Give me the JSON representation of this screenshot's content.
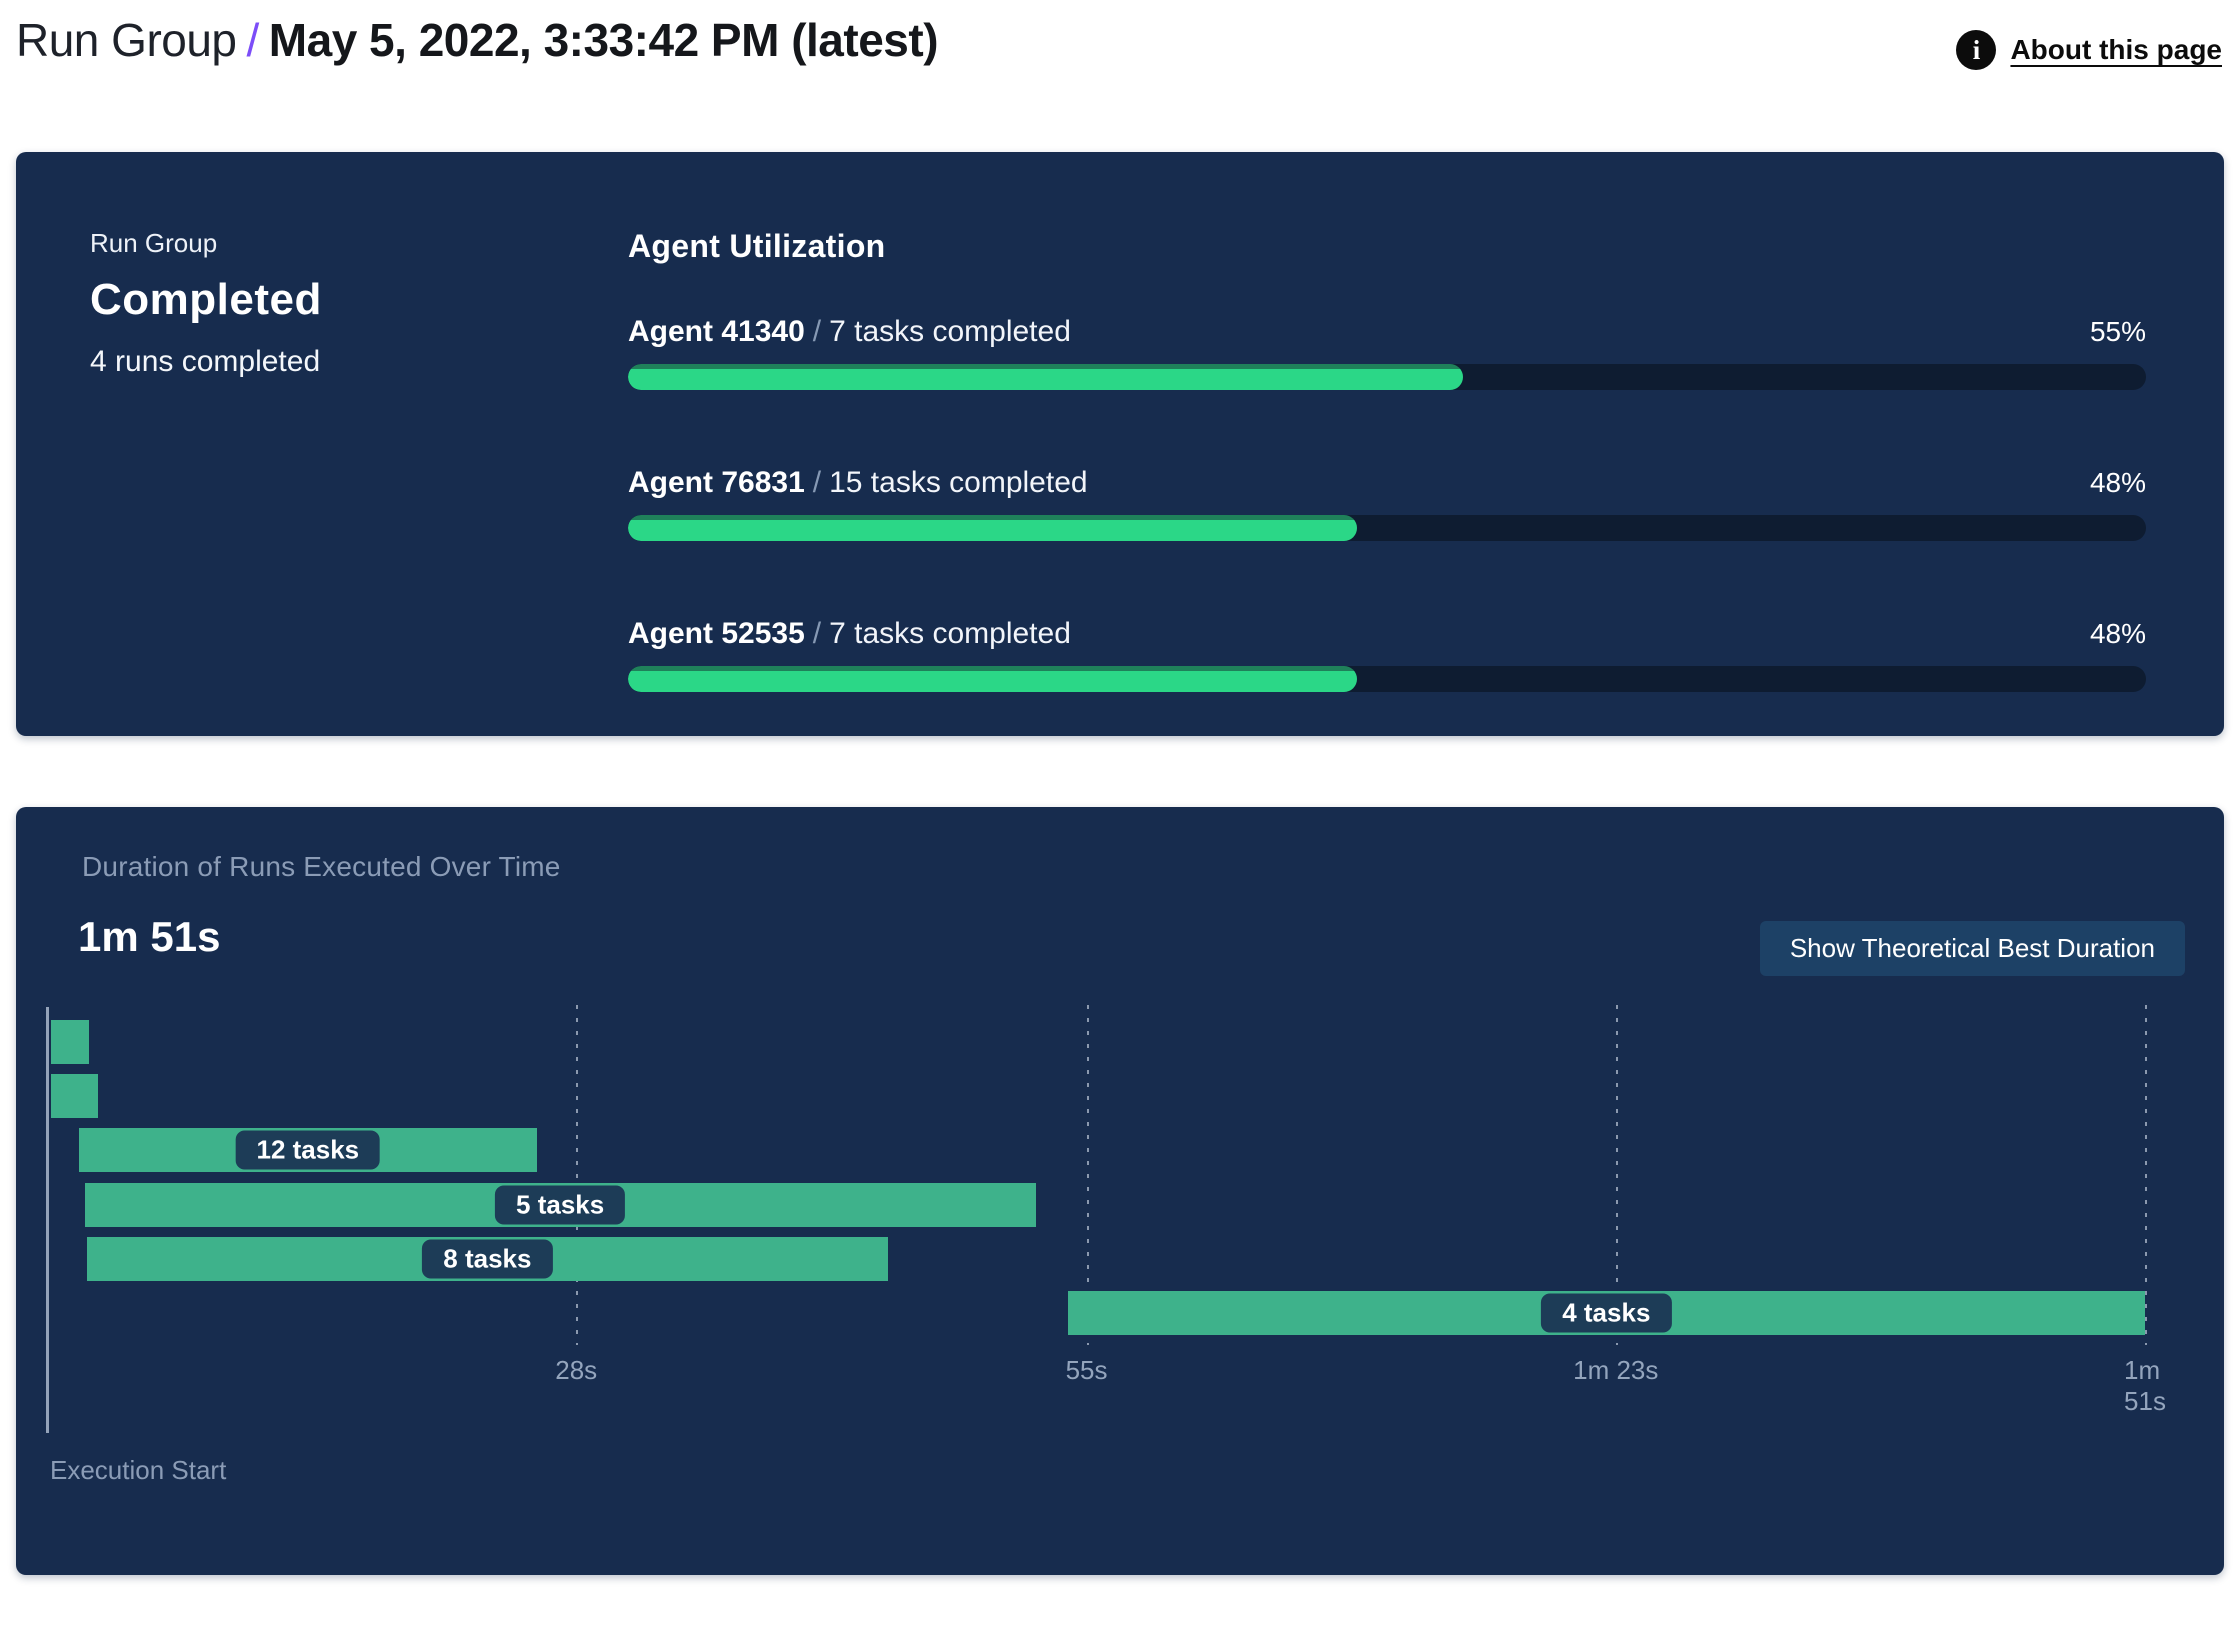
{
  "header": {
    "breadcrumb": "Run Group",
    "separator": "/",
    "title": "May 5, 2022, 3:33:42 PM (latest)",
    "about_link": "About this page",
    "info_icon_glyph": "i"
  },
  "summary": {
    "label": "Run Group",
    "status": "Completed",
    "subtext": "4 runs completed"
  },
  "agent_utilization": {
    "title": "Agent Utilization",
    "separator": "/",
    "agents": [
      {
        "name": "Agent 41340",
        "tasks": "7 tasks completed",
        "percent": "55%",
        "value": 55
      },
      {
        "name": "Agent 76831",
        "tasks": "15 tasks completed",
        "percent": "48%",
        "value": 48
      },
      {
        "name": "Agent 52535",
        "tasks": "7 tasks completed",
        "percent": "48%",
        "value": 48
      }
    ]
  },
  "duration_panel": {
    "title": "Duration of Runs Executed Over Time",
    "total": "1m 51s",
    "button_label": "Show Theoretical Best Duration",
    "axis_label": "Execution Start"
  },
  "chart_data": {
    "type": "gantt",
    "title": "Duration of Runs Executed Over Time",
    "total_duration": "1m 51s",
    "x_unit": "seconds",
    "x_range": [
      0,
      111
    ],
    "x_axis_label": "Execution Start",
    "ticks": [
      {
        "seconds": 28,
        "label": "28s"
      },
      {
        "seconds": 55,
        "label": "55s"
      },
      {
        "seconds": 83,
        "label": "1m 23s"
      },
      {
        "seconds": 111,
        "label": "1m 51s"
      }
    ],
    "bars": [
      {
        "row": 1,
        "start_s": 0.2,
        "end_s": 2.2,
        "label": ""
      },
      {
        "row": 2,
        "start_s": 0.2,
        "end_s": 2.7,
        "label": ""
      },
      {
        "row": 3,
        "start_s": 1.7,
        "end_s": 25.9,
        "label": "12 tasks"
      },
      {
        "row": 4,
        "start_s": 2.0,
        "end_s": 52.3,
        "label": "5 tasks"
      },
      {
        "row": 5,
        "start_s": 2.1,
        "end_s": 44.5,
        "label": "8 tasks"
      },
      {
        "row": 6,
        "start_s": 54.0,
        "end_s": 111.0,
        "label": "4 tasks"
      }
    ]
  },
  "colors": {
    "panel_bg": "#172c4e",
    "progress_fill": "#2bd787",
    "progress_fill_edge": "#1f815a",
    "progress_track": "#0e1c31",
    "gantt_bar": "#3eb28b",
    "gantt_label_bg": "#1d3c57",
    "accent_purple": "#7c4df8",
    "muted_text": "#8b9cb6"
  }
}
